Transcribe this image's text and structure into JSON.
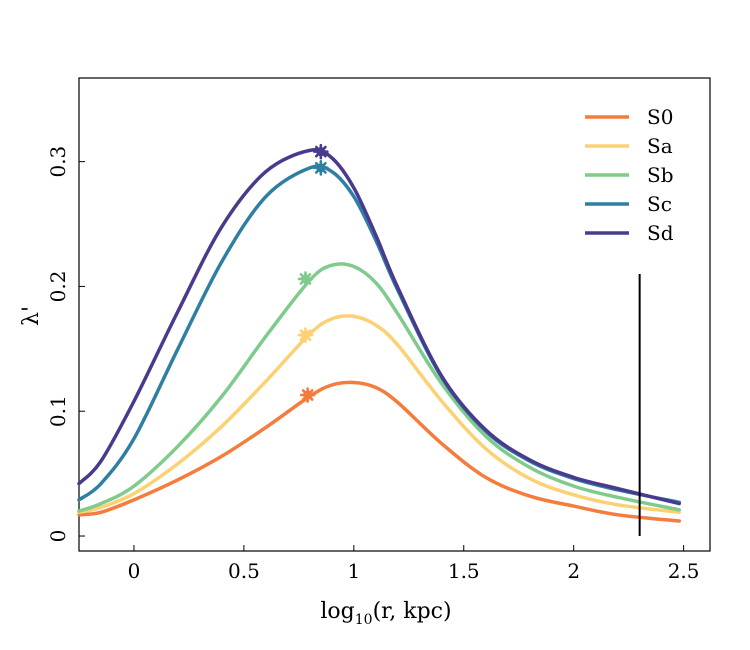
{
  "chart_data": {
    "type": "line",
    "title": "",
    "xlabel": {
      "prefix": "log",
      "subscript": "10",
      "suffix": "(r, kpc)"
    },
    "ylabel": "λ'",
    "xlim": [
      -0.25,
      2.62
    ],
    "ylim": [
      -0.012,
      0.367
    ],
    "xticks": [
      0,
      0.5,
      1,
      1.5,
      2,
      2.5
    ],
    "xtick_labels": [
      "0",
      "0.5",
      "1",
      "1.5",
      "2",
      "2.5"
    ],
    "yticks": [
      0,
      0.1,
      0.2,
      0.3
    ],
    "ytick_labels": [
      "0",
      "0.1",
      "0.2",
      "0.3"
    ],
    "legend_position": "top-right",
    "vertical_line": {
      "x": 2.3,
      "y_range": [
        0,
        0.21
      ],
      "color": "#000000"
    },
    "series": [
      {
        "name": "S0",
        "color": "#f47c3c",
        "x": [
          -0.25,
          -0.15,
          0,
          0.2,
          0.4,
          0.6,
          0.8,
          0.9,
          1.0,
          1.1,
          1.2,
          1.4,
          1.6,
          1.8,
          2.0,
          2.2,
          2.48
        ],
        "y": [
          0.017,
          0.019,
          0.029,
          0.045,
          0.064,
          0.087,
          0.112,
          0.121,
          0.123,
          0.119,
          0.107,
          0.074,
          0.047,
          0.032,
          0.024,
          0.017,
          0.012
        ],
        "marker": {
          "x": 0.79,
          "y": 0.113
        }
      },
      {
        "name": "Sa",
        "color": "#fcd174",
        "x": [
          -0.25,
          -0.15,
          0,
          0.2,
          0.4,
          0.6,
          0.8,
          0.9,
          1.0,
          1.1,
          1.2,
          1.4,
          1.6,
          1.8,
          2.0,
          2.2,
          2.48
        ],
        "y": [
          0.019,
          0.023,
          0.034,
          0.058,
          0.088,
          0.124,
          0.162,
          0.174,
          0.176,
          0.169,
          0.153,
          0.108,
          0.07,
          0.046,
          0.033,
          0.025,
          0.019
        ],
        "marker": {
          "x": 0.78,
          "y": 0.161
        }
      },
      {
        "name": "Sb",
        "color": "#7fcb8c",
        "x": [
          -0.25,
          -0.15,
          0,
          0.2,
          0.4,
          0.6,
          0.8,
          0.9,
          1.0,
          1.1,
          1.2,
          1.4,
          1.6,
          1.8,
          2.0,
          2.2,
          2.48
        ],
        "y": [
          0.02,
          0.026,
          0.04,
          0.072,
          0.112,
          0.16,
          0.205,
          0.217,
          0.216,
          0.203,
          0.178,
          0.122,
          0.08,
          0.055,
          0.04,
          0.031,
          0.021
        ],
        "marker": {
          "x": 0.78,
          "y": 0.206
        }
      },
      {
        "name": "Sc",
        "color": "#2f7fa3",
        "x": [
          -0.25,
          -0.15,
          0,
          0.2,
          0.4,
          0.6,
          0.8,
          0.9,
          1.0,
          1.1,
          1.2,
          1.4,
          1.6,
          1.8,
          2.0,
          2.2,
          2.48
        ],
        "y": [
          0.029,
          0.042,
          0.078,
          0.15,
          0.22,
          0.272,
          0.295,
          0.292,
          0.272,
          0.237,
          0.197,
          0.127,
          0.084,
          0.06,
          0.046,
          0.037,
          0.027
        ],
        "marker": {
          "x": 0.85,
          "y": 0.295
        }
      },
      {
        "name": "Sd",
        "color": "#4a3a8e",
        "x": [
          -0.25,
          -0.15,
          0,
          0.2,
          0.4,
          0.6,
          0.8,
          0.9,
          1.0,
          1.1,
          1.2,
          1.4,
          1.6,
          1.8,
          2.0,
          2.2,
          2.48
        ],
        "y": [
          0.042,
          0.06,
          0.108,
          0.18,
          0.248,
          0.292,
          0.309,
          0.303,
          0.279,
          0.241,
          0.199,
          0.128,
          0.085,
          0.061,
          0.047,
          0.038,
          0.026
        ],
        "marker": {
          "x": 0.85,
          "y": 0.308
        }
      }
    ]
  }
}
